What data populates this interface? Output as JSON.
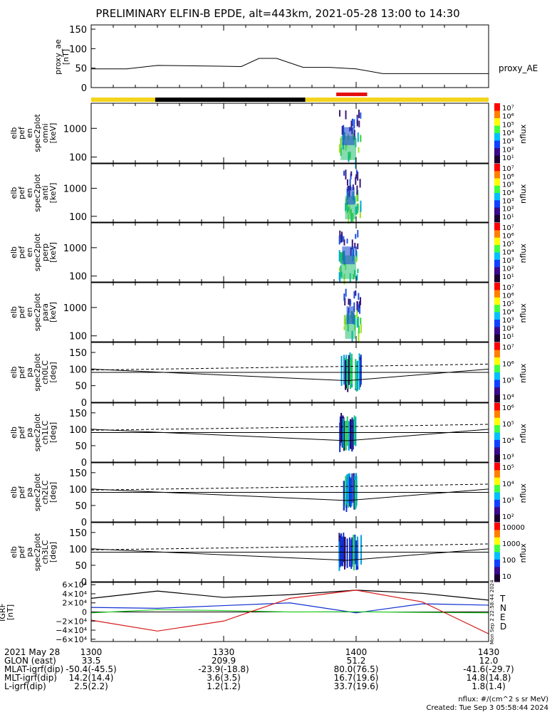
{
  "title": "PRELIMINARY ELFIN-B EPDE, alt=443km, 2021-05-28 13:00 to 14:30",
  "colors": {
    "yellow": "#f4d41c",
    "black": "#000000",
    "red": "#e21010",
    "green": "#22cc22",
    "blue": "#1030d0",
    "curve_red": "#d81818"
  },
  "status_bar": [
    {
      "start": 0,
      "end": 14.5,
      "color": "yellow"
    },
    {
      "start": 14.5,
      "end": 48.5,
      "color": "black"
    },
    {
      "start": 48.5,
      "end": 90,
      "color": "yellow"
    }
  ],
  "red_marks": [
    {
      "start": 55.5,
      "end": 62.5
    }
  ],
  "panels": [
    {
      "id": "proxy-ae",
      "ylabel": [
        "proxy_ae",
        "[nT]"
      ],
      "ticks": [
        "150",
        "100",
        "50",
        "0"
      ],
      "right_label": "proxy_AE"
    },
    {
      "id": "en-omni",
      "ylabel": [
        "elb",
        "pef",
        "en",
        "spec2plot",
        "omni",
        "[keV]"
      ],
      "ticks": [
        "1000",
        "100"
      ],
      "cb_ticks": [
        "10⁷",
        "10⁶",
        "10⁵",
        "10⁴",
        "10³",
        "10²",
        "10¹"
      ],
      "cb_label": "nflux"
    },
    {
      "id": "en-anti",
      "ylabel": [
        "elb",
        "pef",
        "en",
        "spec2plot",
        "anti",
        "[keV]"
      ],
      "ticks": [
        "1000",
        "100"
      ],
      "cb_ticks": [
        "10⁷",
        "10⁶",
        "10⁵",
        "10⁴",
        "10³",
        "10²",
        "10¹"
      ],
      "cb_label": "nflux"
    },
    {
      "id": "en-perp",
      "ylabel": [
        "elb",
        "pef",
        "en",
        "spec2plot",
        "perp",
        "[keV]"
      ],
      "ticks": [
        "1000",
        "100"
      ],
      "cb_ticks": [
        "10⁷",
        "10⁶",
        "10⁵",
        "10⁴",
        "10³",
        "10²",
        "10¹"
      ],
      "cb_label": "nflux"
    },
    {
      "id": "en-para",
      "ylabel": [
        "elb",
        "pef",
        "en",
        "spec2plot",
        "para",
        "[keV]"
      ],
      "ticks": [
        "1000",
        "100"
      ],
      "cb_ticks": [
        "10⁷",
        "10⁶",
        "10⁵",
        "10⁴",
        "10³",
        "10²",
        "10¹"
      ],
      "cb_label": "nflux"
    },
    {
      "id": "pa-ch0",
      "ylabel": [
        "elb",
        "pef",
        "pa",
        "spec2plot",
        "ch0LC",
        "[deg]"
      ],
      "ticks": [
        "150",
        "100",
        "50",
        "0"
      ],
      "cb_ticks": [
        "10⁷",
        "10⁶",
        "10⁵",
        "10⁴"
      ],
      "cb_label": "nflux"
    },
    {
      "id": "pa-ch1",
      "ylabel": [
        "elb",
        "pef",
        "pa",
        "spec2plot",
        "ch1LC",
        "[deg]"
      ],
      "ticks": [
        "150",
        "100",
        "50",
        "0"
      ],
      "cb_ticks": [
        "10⁶",
        "10⁵",
        "10⁴",
        "10³"
      ],
      "cb_label": "nflux"
    },
    {
      "id": "pa-ch2",
      "ylabel": [
        "elb",
        "pef",
        "pa",
        "spec2plot",
        "ch2LC",
        "[deg]"
      ],
      "ticks": [
        "150",
        "100",
        "50",
        "0"
      ],
      "cb_ticks": [
        "10⁵",
        "10⁴",
        "10³",
        "10²"
      ],
      "cb_label": "nflux"
    },
    {
      "id": "pa-ch3",
      "ylabel": [
        "elb",
        "pef",
        "pa",
        "spec2plot",
        "ch3LC",
        "[deg]"
      ],
      "ticks": [
        "150",
        "100",
        "50",
        "0"
      ],
      "cb_ticks": [
        "10000",
        "1000",
        "100",
        "10"
      ],
      "cb_label": "nflux"
    },
    {
      "id": "igrf",
      "ylabel": [
        "IGRF",
        "[nT]"
      ],
      "ticks": [
        "6×10⁴",
        "4×10⁴",
        "2×10⁴",
        "0",
        "−2×10⁴",
        "−4×10⁴",
        "−6×10⁴"
      ],
      "legend": [
        "T",
        "N",
        "E",
        "D"
      ]
    }
  ],
  "chart_data": [
    {
      "type": "line",
      "title": "PRELIMINARY ELFIN-B EPDE, alt=443km, 2021-05-28 13:00 to 14:30",
      "ylabel": "proxy_ae [nT]",
      "ylim": [
        0,
        150
      ],
      "series": [
        {
          "name": "proxy_AE",
          "x": [
            0,
            8,
            15,
            28,
            34,
            38,
            42,
            48,
            54,
            60,
            66,
            90
          ],
          "y": [
            48,
            48,
            57,
            55,
            54,
            75,
            75,
            52,
            52,
            48,
            36,
            36
          ]
        }
      ]
    },
    {
      "type": "heatmap",
      "ylabel": "elb pef en spec2plot omni [keV]",
      "yscale": "log",
      "colorbar": "nflux",
      "active_x": [
        56,
        61
      ]
    },
    {
      "type": "heatmap",
      "ylabel": "elb pef en spec2plot anti [keV]",
      "yscale": "log",
      "colorbar": "nflux",
      "active_x": [
        57,
        61
      ]
    },
    {
      "type": "heatmap",
      "ylabel": "elb pef en spec2plot perp [keV]",
      "yscale": "log",
      "colorbar": "nflux",
      "active_x": [
        56,
        61
      ]
    },
    {
      "type": "heatmap",
      "ylabel": "elb pef en spec2plot para [keV]",
      "yscale": "log",
      "colorbar": "nflux",
      "active_x": [
        57,
        61
      ]
    },
    {
      "type": "heatmap",
      "ylabel": "elb pef pa spec2plot ch0LC [deg]",
      "ylim": [
        0,
        180
      ],
      "colorbar": "nflux",
      "active_x": [
        56,
        61
      ]
    },
    {
      "type": "heatmap",
      "ylabel": "elb pef pa spec2plot ch1LC [deg]",
      "ylim": [
        0,
        180
      ],
      "colorbar": "nflux",
      "active_x": [
        56,
        60
      ]
    },
    {
      "type": "heatmap",
      "ylabel": "elb pef pa spec2plot ch2LC [deg]",
      "ylim": [
        0,
        180
      ],
      "colorbar": "nflux",
      "active_x": [
        57,
        60
      ]
    },
    {
      "type": "heatmap",
      "ylabel": "elb pef pa spec2plot ch3LC [deg]",
      "ylim": [
        0,
        180
      ],
      "colorbar": "nflux",
      "active_x": [
        56,
        61
      ]
    },
    {
      "type": "line",
      "ylabel": "IGRF [nT]",
      "ylim": [
        -65000,
        65000
      ],
      "series": [
        {
          "name": "T",
          "x": [
            0,
            15,
            30,
            45,
            60,
            75,
            90
          ],
          "y": [
            30000,
            46000,
            32000,
            38000,
            48000,
            41000,
            26000
          ]
        },
        {
          "name": "N",
          "x": [
            0,
            15,
            30,
            45,
            60,
            75,
            90
          ],
          "y": [
            10000,
            8000,
            14000,
            20000,
            -2000,
            18000,
            15000
          ]
        },
        {
          "name": "E",
          "x": [
            0,
            15,
            30,
            45,
            60,
            75,
            90
          ],
          "y": [
            -2000,
            5000,
            3000,
            0,
            500,
            -1000,
            -2000
          ]
        },
        {
          "name": "D",
          "x": [
            0,
            15,
            30,
            45,
            60,
            75,
            90
          ],
          "y": [
            -18000,
            -42000,
            -20000,
            30000,
            48000,
            22000,
            -48000
          ]
        }
      ]
    }
  ],
  "time_axis": {
    "ticks": [
      "1300",
      "1330",
      "1400",
      "1430"
    ],
    "tick_values": [
      0,
      30,
      60,
      90
    ]
  },
  "footer_rows": [
    {
      "label": "2021 May 28",
      "values": [
        "1300",
        "1330",
        "1400",
        "1430"
      ]
    },
    {
      "label": "GLON (east)",
      "values": [
        "33.5",
        "209.9",
        "51.2",
        "12.0"
      ]
    },
    {
      "label": "MLAT-igrf(dip)",
      "values": [
        "-50.4(-45.5)",
        "-23.9(-18.8)",
        "80.0(76.5)",
        "-41.6(-29.7)"
      ]
    },
    {
      "label": "MLT-igrf(dip)",
      "values": [
        "14.2(14.4)",
        "3.6(3.5)",
        "16.7(19.6)",
        "14.8(14.8)"
      ]
    },
    {
      "label": "L-igrf(dip)",
      "values": [
        "2.5(2.2)",
        "1.2(1.2)",
        "33.7(19.6)",
        "1.8(1.4)"
      ]
    }
  ],
  "units_note": "nflux: #/(cm^2 s sr MeV)",
  "created": "Created: Tue Sep  3 05:58:44 2024",
  "side_stamp": "Mon Sep  2 22:58:44 2024"
}
